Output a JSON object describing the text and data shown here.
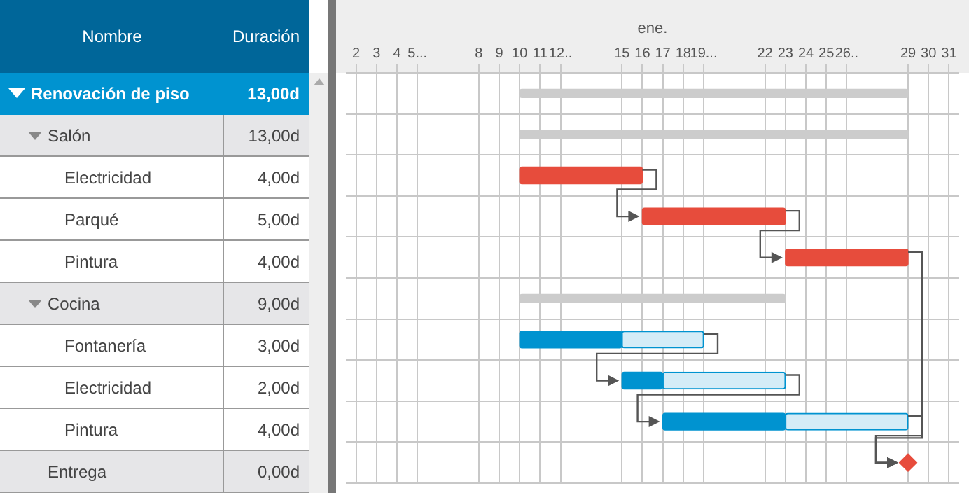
{
  "chart_data": [
    {
      "type": "other",
      "annotations": [
        "Nombre",
        "Duración"
      ],
      "categories": [
        "Renovación de piso",
        "Salón",
        "Electricidad",
        "Parqué",
        "Pintura",
        "Cocina",
        "Fontanería",
        "Electricidad",
        "Pintura",
        "Entrega"
      ],
      "value_labels": [
        "13,00d",
        "13,00d",
        "4,00d",
        "5,00d",
        "4,00d",
        "9,00d",
        "3,00d",
        "2,00d",
        "4,00d",
        "0,00d"
      ]
    },
    {
      "type": "bar",
      "orientation": "horizontal",
      "xlabel": "ene.",
      "categories": [
        null,
        null,
        null,
        null,
        null,
        null,
        null,
        null,
        null,
        null
      ],
      "xlim": [
        1.5,
        31.5
      ],
      "xticks": [
        2,
        3,
        4,
        {
          "value": 5,
          "label": "5..."
        },
        8,
        9,
        10,
        11,
        {
          "value": 12,
          "label": "12.."
        },
        15,
        16,
        17,
        18,
        {
          "value": 19,
          "label": "19..."
        },
        22,
        23,
        24,
        25,
        {
          "value": 26,
          "label": "26.."
        },
        29,
        30,
        31
      ],
      "grid": true,
      "legend": false,
      "series": [
        {
          "color": "#cccccc",
          "base": [
            10,
            10,
            null,
            null,
            null,
            10,
            null,
            null,
            null,
            null
          ],
          "values": [
            19,
            19,
            null,
            null,
            null,
            13,
            null,
            null,
            null,
            null
          ]
        },
        {
          "color": "#e74c3c",
          "base": [
            null,
            null,
            10,
            16,
            23,
            null,
            null,
            null,
            null,
            null
          ],
          "values": [
            null,
            null,
            6,
            7,
            6,
            null,
            null,
            null,
            null,
            null
          ]
        },
        {
          "color": "#0093d0",
          "base": [
            null,
            null,
            null,
            null,
            null,
            null,
            10,
            15,
            17,
            null
          ],
          "values": [
            null,
            null,
            null,
            null,
            null,
            null,
            5,
            2,
            6,
            null
          ]
        },
        {
          "color": "#d4ecf7",
          "base": [
            null,
            null,
            null,
            null,
            null,
            null,
            15,
            17,
            23,
            null
          ],
          "values": [
            null,
            null,
            null,
            null,
            null,
            null,
            4,
            6,
            6,
            null
          ]
        },
        {
          "type": "scatter",
          "marker": "diamond",
          "color": "#e74c3c",
          "values": [
            null,
            null,
            null,
            null,
            null,
            null,
            null,
            null,
            null,
            29
          ]
        }
      ]
    }
  ]
}
